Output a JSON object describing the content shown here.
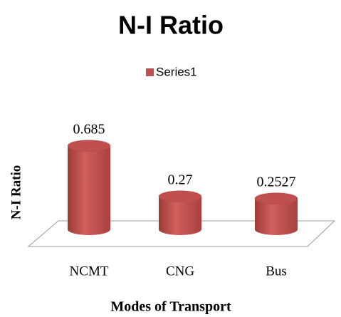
{
  "chart_data": {
    "type": "bar",
    "title": "N-I Ratio",
    "y_label": "N-I Ratio",
    "x_label": "Modes of Transport",
    "categories": [
      "NCMT",
      "CNG",
      "Bus"
    ],
    "series": [
      {
        "name": "Series1",
        "color": "#c0504d",
        "values": [
          0.685,
          0.27,
          0.2527
        ]
      }
    ],
    "ylim": [
      0,
      0.8
    ],
    "legend": "top"
  }
}
